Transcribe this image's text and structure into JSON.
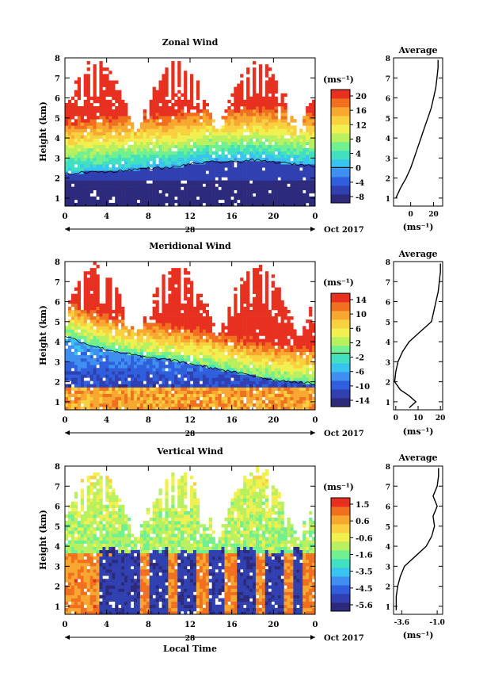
{
  "figure": {
    "x_axis_label": "Local Time",
    "date_mark": "28",
    "date_right": "Oct 2017"
  },
  "colors": {
    "background": "#ffffff",
    "axis": "#000000",
    "zonal_scale": [
      "#2d2a7c",
      "#3040b0",
      "#2f5fdc",
      "#3f8ff0",
      "#39c4f0",
      "#40e0c0",
      "#70f090",
      "#b8f060",
      "#f0f050",
      "#f8d040",
      "#f8a830",
      "#f07020",
      "#e83020"
    ],
    "meridional_scale": [
      "#2d2a7c",
      "#3040b0",
      "#2f5fdc",
      "#3f8ff0",
      "#39c4f0",
      "#40e0c0",
      "#70f090",
      "#b8f060",
      "#f0f050",
      "#f8d040",
      "#f8a830",
      "#f07020",
      "#e83020"
    ],
    "vertical_scale": [
      "#2d2a7c",
      "#3040b0",
      "#2f5fdc",
      "#3f8ff0",
      "#39c4f0",
      "#40e0c0",
      "#70f090",
      "#b8f060",
      "#f0f050",
      "#f8d040",
      "#f8a830",
      "#f07020",
      "#e83020"
    ]
  },
  "chart_data": [
    {
      "type": "heatmap",
      "title": "Zonal Wind",
      "xlabel": "",
      "ylabel": "Height (km)",
      "x_ticks": [
        "0",
        "4",
        "8",
        "12",
        "16",
        "20",
        "0"
      ],
      "xlim": [
        0,
        24
      ],
      "ylim": [
        0.6,
        8
      ],
      "y_ticks": [
        "1",
        "2",
        "3",
        "4",
        "5",
        "6",
        "7",
        "8"
      ],
      "colorbar": {
        "unit": "(ms⁻¹)",
        "ticks": [
          "20",
          "16",
          "12",
          "8",
          "4",
          "0",
          "-4",
          "-8"
        ],
        "range": [
          -10,
          22
        ]
      },
      "structure": {
        "zero_line_height_km": [
          2.2,
          2.3,
          2.3,
          2.4,
          2.5,
          2.5,
          2.7,
          2.8,
          2.8,
          2.9,
          2.8,
          2.7,
          2.6
        ],
        "low_value": -9,
        "high_value": 22
      },
      "average": {
        "title": "Average",
        "x_ticks": [
          "0",
          "20"
        ],
        "xlim": [
          -15,
          28
        ],
        "xlabel": "(ms⁻¹)",
        "profile": [
          [
            1.0,
            -13
          ],
          [
            1.5,
            -9
          ],
          [
            2.0,
            -4
          ],
          [
            2.5,
            0
          ],
          [
            3.0,
            3
          ],
          [
            3.5,
            6
          ],
          [
            4.0,
            9
          ],
          [
            4.5,
            12
          ],
          [
            5.0,
            15
          ],
          [
            5.5,
            18
          ],
          [
            6.0,
            20
          ],
          [
            6.5,
            22
          ],
          [
            7.0,
            23
          ],
          [
            7.5,
            24
          ],
          [
            7.9,
            24
          ]
        ]
      }
    },
    {
      "type": "heatmap",
      "title": "Meridional Wind",
      "xlabel": "",
      "ylabel": "Height (km)",
      "x_ticks": [
        "0",
        "4",
        "8",
        "12",
        "16",
        "20",
        "0"
      ],
      "xlim": [
        0,
        24
      ],
      "ylim": [
        0.6,
        8
      ],
      "y_ticks": [
        "1",
        "2",
        "3",
        "4",
        "5",
        "6",
        "7",
        "8"
      ],
      "colorbar": {
        "unit": "(ms⁻¹)",
        "ticks": [
          "14",
          "10",
          "6",
          "2",
          "-2",
          "-6",
          "-10",
          "-14"
        ],
        "range": [
          -16,
          18
        ]
      },
      "structure": {
        "zero_line_height_km": [
          4.3,
          3.9,
          3.6,
          3.4,
          3.2,
          3.1,
          2.9,
          2.7,
          2.5,
          2.3,
          2.1,
          2.0,
          1.9
        ],
        "low_value": -15,
        "high_value": 17
      },
      "average": {
        "title": "Average",
        "x_ticks": [
          "0",
          "10",
          "20"
        ],
        "xlim": [
          -1,
          21
        ],
        "xlabel": "(ms⁻¹)",
        "profile": [
          [
            0.7,
            6
          ],
          [
            1.0,
            9
          ],
          [
            1.3,
            6
          ],
          [
            1.6,
            2
          ],
          [
            2.0,
            -0.5
          ],
          [
            2.5,
            0
          ],
          [
            3.0,
            1
          ],
          [
            3.5,
            3
          ],
          [
            4.0,
            6
          ],
          [
            4.5,
            11
          ],
          [
            5.0,
            16
          ],
          [
            5.5,
            17
          ],
          [
            6.0,
            18
          ],
          [
            6.5,
            19
          ],
          [
            7.0,
            19.5
          ],
          [
            7.5,
            20
          ],
          [
            7.9,
            20
          ]
        ]
      }
    },
    {
      "type": "heatmap",
      "title": "Vertical Wind",
      "xlabel": "Local Time",
      "ylabel": "Height (km)",
      "x_ticks": [
        "0",
        "4",
        "8",
        "12",
        "16",
        "20",
        "0"
      ],
      "xlim": [
        0,
        24
      ],
      "ylim": [
        0.6,
        8
      ],
      "y_ticks": [
        "1",
        "2",
        "3",
        "4",
        "5",
        "6",
        "7",
        "8"
      ],
      "colorbar": {
        "unit": "(ms⁻¹)",
        "ticks": [
          "1.5",
          "0.6",
          "-0.6",
          "-1.6",
          "-3.5",
          "-4.5",
          "-5.6"
        ],
        "range": [
          -6.0,
          2.0
        ]
      },
      "structure": {
        "zero_line_height_km": [],
        "low_value": -6.0,
        "high_value": 1.5
      },
      "average": {
        "title": "Average",
        "x_ticks": [
          "-3.6",
          "-1.0"
        ],
        "xlim": [
          -4.2,
          -0.6
        ],
        "xlabel": "(ms⁻¹)",
        "profile": [
          [
            0.8,
            -4.0
          ],
          [
            1.5,
            -4.0
          ],
          [
            2.0,
            -3.9
          ],
          [
            2.5,
            -3.7
          ],
          [
            3.0,
            -3.4
          ],
          [
            3.5,
            -2.6
          ],
          [
            4.0,
            -1.8
          ],
          [
            4.5,
            -1.4
          ],
          [
            5.0,
            -1.2
          ],
          [
            5.5,
            -1.3
          ],
          [
            6.0,
            -1.0
          ],
          [
            6.5,
            -1.3
          ],
          [
            7.0,
            -1.0
          ],
          [
            7.5,
            -0.9
          ],
          [
            7.9,
            -0.9
          ]
        ]
      }
    }
  ]
}
